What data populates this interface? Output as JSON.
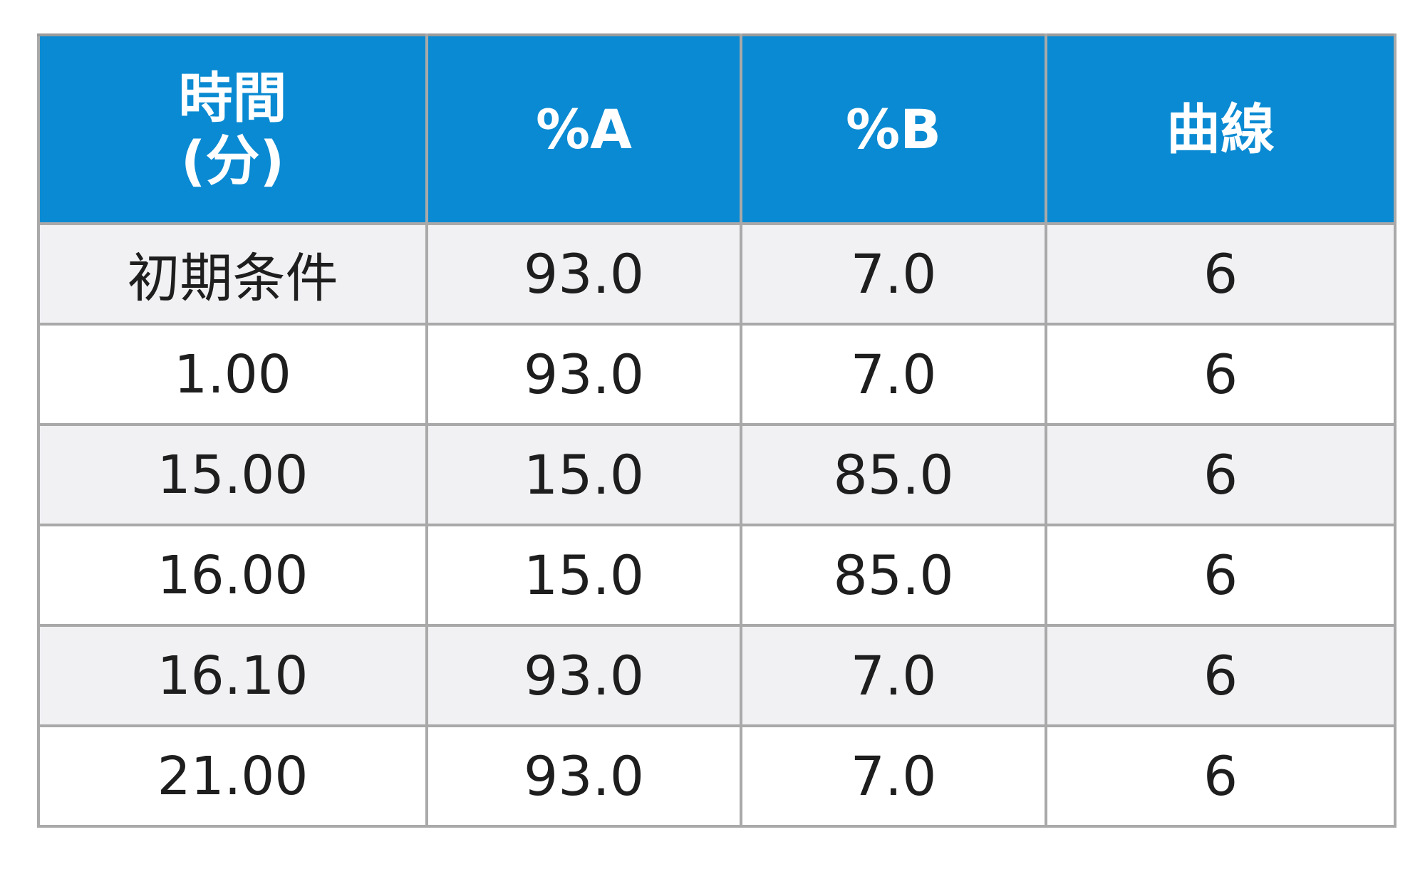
{
  "table": {
    "headers": {
      "time_line1": "時間",
      "time_line2": "(分)",
      "percent_a": "%A",
      "percent_b": "%B",
      "curve": "曲線"
    },
    "rows": [
      {
        "time": "初期条件",
        "percent_a": "93.0",
        "percent_b": "7.0",
        "curve": "6"
      },
      {
        "time": "1.00",
        "percent_a": "93.0",
        "percent_b": "7.0",
        "curve": "6"
      },
      {
        "time": "15.00",
        "percent_a": "15.0",
        "percent_b": "85.0",
        "curve": "6"
      },
      {
        "time": "16.00",
        "percent_a": "15.0",
        "percent_b": "85.0",
        "curve": "6"
      },
      {
        "time": "16.10",
        "percent_a": "93.0",
        "percent_b": "7.0",
        "curve": "6"
      },
      {
        "time": "21.00",
        "percent_a": "93.0",
        "percent_b": "7.0",
        "curve": "6"
      }
    ]
  },
  "colors": {
    "header_background": "#0a8ad2",
    "header_text": "#ffffff",
    "row_shaded": "#f1f1f4",
    "row_plain": "#ffffff",
    "border": "#a9a9a9",
    "cell_text": "#1e1e1e"
  }
}
